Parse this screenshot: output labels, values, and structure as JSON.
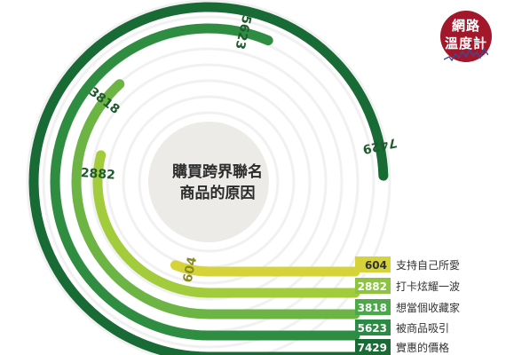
{
  "chart_data": {
    "type": "radial-bar",
    "title": "購買跨界聯名商品的原因",
    "title_lines": [
      "購買跨界聯名",
      "商品的原因"
    ],
    "categories": [
      "支持自己所愛",
      "打卡炫耀一波",
      "想當個收藏家",
      "被商品吸引",
      "實惠的價格"
    ],
    "values": [
      604,
      2882,
      3818,
      5623,
      7429
    ],
    "value_labels": [
      "604",
      "2882",
      "3818",
      "5623",
      "7429"
    ],
    "colors": [
      "#d5d33a",
      "#a3cc3d",
      "#6cb444",
      "#2f8d42",
      "#196b36"
    ],
    "legend_box_colors": [
      "#d5d33a",
      "#8cc33f",
      "#4ca94a",
      "#2b8a43",
      "#1a6a35"
    ],
    "legend_placement": "bottom-right",
    "center_circle_color": "#ecebe8",
    "ring_color": "#f1f1f1"
  },
  "logo": {
    "lines": [
      "網路",
      "溫度計"
    ],
    "color": "#a3172b"
  }
}
